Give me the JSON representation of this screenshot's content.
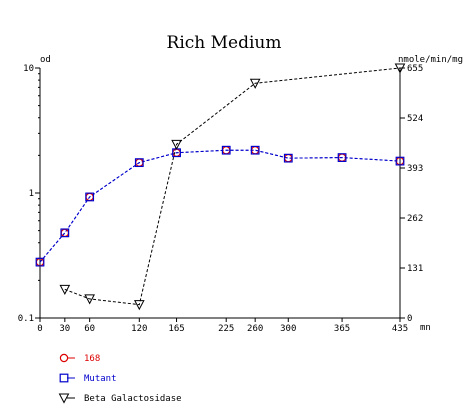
{
  "chart_data": {
    "type": "line",
    "title": "Rich Medium",
    "x_unit_label": "mn",
    "left_axis": {
      "label": "od",
      "scale": "log",
      "range": [
        0.1,
        10
      ],
      "ticks": [
        "0.1",
        "1",
        "10"
      ]
    },
    "right_axis": {
      "label": "nmole/min/mg",
      "scale": "linear",
      "range": [
        0,
        655
      ],
      "ticks": [
        "0",
        "131",
        "262",
        "393",
        "524",
        "655"
      ]
    },
    "x_axis": {
      "range": [
        0,
        435
      ],
      "ticks": [
        "0",
        "30",
        "60",
        "120",
        "165",
        "225",
        "260",
        "300",
        "365",
        "435"
      ]
    },
    "grid": false,
    "legend_placement": "bottom-left",
    "series": [
      {
        "name": "168",
        "axis": "left",
        "marker": "circle",
        "color": "#dd0000",
        "x": [
          0,
          30,
          60,
          120,
          165,
          225,
          260,
          300,
          365,
          435
        ],
        "y": [
          0.28,
          0.48,
          0.93,
          1.75,
          2.1,
          2.2,
          2.2,
          1.9,
          1.92,
          1.8
        ]
      },
      {
        "name": "Mutant",
        "axis": "left",
        "marker": "square",
        "color": "#0000cc",
        "x": [
          0,
          30,
          60,
          120,
          165,
          225,
          260,
          300,
          365,
          435
        ],
        "y": [
          0.28,
          0.48,
          0.93,
          1.75,
          2.1,
          2.2,
          2.2,
          1.9,
          1.92,
          1.8
        ]
      },
      {
        "name": "Beta Galactosidase",
        "axis": "right",
        "marker": "triangle-down",
        "color": "#000000",
        "x": [
          30,
          60,
          120,
          165,
          260,
          435
        ],
        "y": [
          75,
          50,
          35,
          455,
          615,
          655
        ]
      }
    ]
  }
}
